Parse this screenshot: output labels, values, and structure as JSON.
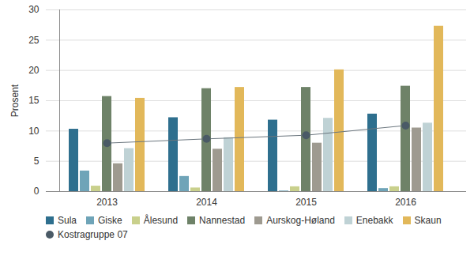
{
  "chart_data": {
    "type": "bar",
    "categories": [
      "2013",
      "2014",
      "2015",
      "2016"
    ],
    "ylabel": "Prosent",
    "ylim": [
      0,
      30
    ],
    "yticks": [
      0,
      5,
      10,
      15,
      20,
      25,
      30
    ],
    "grid": true,
    "legend": "bottom",
    "series": [
      {
        "name": "Sula",
        "color": "#2e6f8e",
        "values": [
          10.3,
          12.2,
          11.8,
          12.8
        ]
      },
      {
        "name": "Giske",
        "color": "#6fa4b8",
        "values": [
          3.4,
          2.5,
          0.1,
          0.5
        ]
      },
      {
        "name": "Ålesund",
        "color": "#c9d08c",
        "values": [
          0.9,
          0.6,
          0.8,
          0.8
        ]
      },
      {
        "name": "Nannestad",
        "color": "#6e8268",
        "values": [
          15.7,
          17.0,
          17.2,
          17.4
        ]
      },
      {
        "name": "Aurskog-Høland",
        "color": "#9e9a90",
        "values": [
          4.6,
          7.0,
          8.0,
          10.5
        ]
      },
      {
        "name": "Enebakk",
        "color": "#bfd2d5",
        "values": [
          7.1,
          8.9,
          12.1,
          11.3
        ]
      },
      {
        "name": "Skaun",
        "color": "#e2b85a",
        "values": [
          15.4,
          17.2,
          20.1,
          27.3
        ]
      },
      {
        "name": "Kostragruppe 07",
        "color": "#4a5a66",
        "type": "line",
        "marker": "circle",
        "values": [
          8.0,
          8.7,
          9.3,
          10.9
        ]
      }
    ]
  }
}
